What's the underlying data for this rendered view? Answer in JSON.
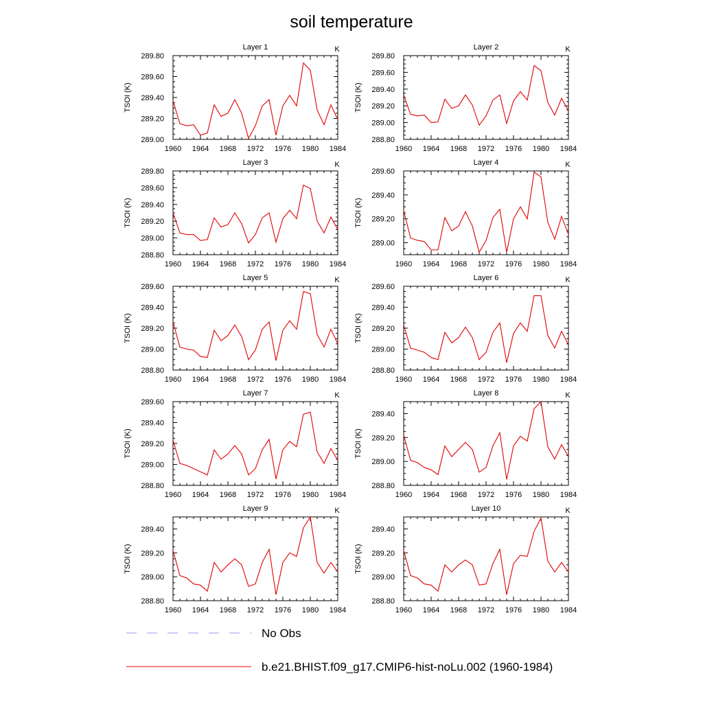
{
  "title": "soil temperature",
  "legend": {
    "position": "bottom",
    "items": [
      {
        "label": "No Obs",
        "color": "#9a9ae8",
        "style": "dashed"
      },
      {
        "label": "b.e21.BHIST.f09_g17.CMIP6-hist-noLu.002 (1960-1984)",
        "color": "#e00000",
        "style": "solid"
      }
    ]
  },
  "chart_data": [
    {
      "type": "line",
      "title": "Layer 1",
      "units": "K",
      "ylabel": "TSOI  (K)",
      "x": [
        1960,
        1961,
        1962,
        1963,
        1964,
        1965,
        1966,
        1967,
        1968,
        1969,
        1970,
        1971,
        1972,
        1973,
        1974,
        1975,
        1976,
        1977,
        1978,
        1979,
        1980,
        1981,
        1982,
        1983,
        1984
      ],
      "xlim": [
        1960,
        1984
      ],
      "xticks": [
        "1960",
        "1964",
        "1968",
        "1972",
        "1976",
        "1980",
        "1984"
      ],
      "ylim": [
        289.0,
        289.8
      ],
      "yticks": [
        "289.00",
        "289.20",
        "289.40",
        "289.60",
        "289.80"
      ],
      "series": [
        {
          "name": "b.e21.BHIST.f09_g17.CMIP6-hist-noLu.002 (1960-1984)",
          "color": "#e00000",
          "values": [
            289.37,
            289.15,
            289.13,
            289.14,
            289.04,
            289.06,
            289.33,
            289.22,
            289.25,
            289.38,
            289.25,
            289.01,
            289.13,
            289.32,
            289.38,
            289.04,
            289.32,
            289.42,
            289.32,
            289.73,
            289.66,
            289.28,
            289.14,
            289.33,
            289.19
          ]
        }
      ]
    },
    {
      "type": "line",
      "title": "Layer 2",
      "units": "K",
      "ylabel": "TSOI  (K)",
      "x": [
        1960,
        1961,
        1962,
        1963,
        1964,
        1965,
        1966,
        1967,
        1968,
        1969,
        1970,
        1971,
        1972,
        1973,
        1974,
        1975,
        1976,
        1977,
        1978,
        1979,
        1980,
        1981,
        1982,
        1983,
        1984
      ],
      "xlim": [
        1960,
        1984
      ],
      "xticks": [
        "1960",
        "1964",
        "1968",
        "1972",
        "1976",
        "1980",
        "1984"
      ],
      "ylim": [
        288.8,
        289.8
      ],
      "yticks": [
        "288.80",
        "289.00",
        "289.20",
        "289.40",
        "289.60",
        "289.80"
      ],
      "series": [
        {
          "name": "b.e21.BHIST.f09_g17.CMIP6-hist-noLu.002 (1960-1984)",
          "color": "#e00000",
          "values": [
            289.33,
            289.1,
            289.08,
            289.09,
            289.0,
            289.01,
            289.28,
            289.17,
            289.2,
            289.33,
            289.21,
            288.97,
            289.08,
            289.27,
            289.33,
            288.99,
            289.26,
            289.37,
            289.27,
            289.68,
            289.62,
            289.24,
            289.09,
            289.29,
            289.14
          ]
        }
      ]
    },
    {
      "type": "line",
      "title": "Layer 3",
      "units": "K",
      "ylabel": "TSOI  (K)",
      "x": [
        1960,
        1961,
        1962,
        1963,
        1964,
        1965,
        1966,
        1967,
        1968,
        1969,
        1970,
        1971,
        1972,
        1973,
        1974,
        1975,
        1976,
        1977,
        1978,
        1979,
        1980,
        1981,
        1982,
        1983,
        1984
      ],
      "xlim": [
        1960,
        1984
      ],
      "xticks": [
        "1960",
        "1964",
        "1968",
        "1972",
        "1976",
        "1980",
        "1984"
      ],
      "ylim": [
        288.8,
        289.8
      ],
      "yticks": [
        "288.80",
        "289.00",
        "289.20",
        "289.40",
        "289.60",
        "289.80"
      ],
      "series": [
        {
          "name": "b.e21.BHIST.f09_g17.CMIP6-hist-noLu.002 (1960-1984)",
          "color": "#e00000",
          "values": [
            289.3,
            289.06,
            289.04,
            289.04,
            288.97,
            288.98,
            289.24,
            289.13,
            289.16,
            289.3,
            289.17,
            288.94,
            289.04,
            289.24,
            289.3,
            288.95,
            289.23,
            289.33,
            289.23,
            289.63,
            289.59,
            289.2,
            289.06,
            289.25,
            289.1
          ]
        }
      ]
    },
    {
      "type": "line",
      "title": "Layer 4",
      "units": "K",
      "ylabel": "TSOI  (K)",
      "x": [
        1960,
        1961,
        1962,
        1963,
        1964,
        1965,
        1966,
        1967,
        1968,
        1969,
        1970,
        1971,
        1972,
        1973,
        1974,
        1975,
        1976,
        1977,
        1978,
        1979,
        1980,
        1981,
        1982,
        1983,
        1984
      ],
      "xlim": [
        1960,
        1984
      ],
      "xticks": [
        "1960",
        "1964",
        "1968",
        "1972",
        "1976",
        "1980",
        "1984"
      ],
      "ylim": [
        288.9,
        289.6
      ],
      "yticks": [
        "289.00",
        "289.20",
        "289.40",
        "289.60"
      ],
      "series": [
        {
          "name": "b.e21.BHIST.f09_g17.CMIP6-hist-noLu.002 (1960-1984)",
          "color": "#e00000",
          "values": [
            289.27,
            289.04,
            289.02,
            289.01,
            288.94,
            288.94,
            289.21,
            289.1,
            289.14,
            289.26,
            289.14,
            288.92,
            289.02,
            289.21,
            289.28,
            288.92,
            289.2,
            289.3,
            289.2,
            289.59,
            289.55,
            289.17,
            289.03,
            289.22,
            289.07
          ]
        }
      ]
    },
    {
      "type": "line",
      "title": "Layer 5",
      "units": "K",
      "ylabel": "TSOI  (K)",
      "x": [
        1960,
        1961,
        1962,
        1963,
        1964,
        1965,
        1966,
        1967,
        1968,
        1969,
        1970,
        1971,
        1972,
        1973,
        1974,
        1975,
        1976,
        1977,
        1978,
        1979,
        1980,
        1981,
        1982,
        1983,
        1984
      ],
      "xlim": [
        1960,
        1984
      ],
      "xticks": [
        "1960",
        "1964",
        "1968",
        "1972",
        "1976",
        "1980",
        "1984"
      ],
      "ylim": [
        288.8,
        289.6
      ],
      "yticks": [
        "288.80",
        "289.00",
        "289.20",
        "289.40",
        "289.60"
      ],
      "series": [
        {
          "name": "b.e21.BHIST.f09_g17.CMIP6-hist-noLu.002 (1960-1984)",
          "color": "#e00000",
          "values": [
            289.26,
            289.02,
            289.0,
            288.99,
            288.93,
            288.92,
            289.18,
            289.08,
            289.13,
            289.23,
            289.12,
            288.9,
            288.99,
            289.19,
            289.26,
            288.89,
            289.18,
            289.27,
            289.19,
            289.55,
            289.53,
            289.14,
            289.02,
            289.19,
            289.05
          ]
        }
      ]
    },
    {
      "type": "line",
      "title": "Layer 6",
      "units": "K",
      "ylabel": "TSOI  (K)",
      "x": [
        1960,
        1961,
        1962,
        1963,
        1964,
        1965,
        1966,
        1967,
        1968,
        1969,
        1970,
        1971,
        1972,
        1973,
        1974,
        1975,
        1976,
        1977,
        1978,
        1979,
        1980,
        1981,
        1982,
        1983,
        1984
      ],
      "xlim": [
        1960,
        1984
      ],
      "xticks": [
        "1960",
        "1964",
        "1968",
        "1972",
        "1976",
        "1980",
        "1984"
      ],
      "ylim": [
        288.8,
        289.6
      ],
      "yticks": [
        "288.80",
        "289.00",
        "289.20",
        "289.40",
        "289.60"
      ],
      "series": [
        {
          "name": "b.e21.BHIST.f09_g17.CMIP6-hist-noLu.002 (1960-1984)",
          "color": "#e00000",
          "values": [
            289.23,
            289.01,
            288.99,
            288.97,
            288.92,
            288.9,
            289.16,
            289.06,
            289.11,
            289.21,
            289.11,
            288.9,
            288.97,
            289.16,
            289.25,
            288.87,
            289.15,
            289.25,
            289.17,
            289.51,
            289.51,
            289.13,
            289.01,
            289.17,
            289.04
          ]
        }
      ]
    },
    {
      "type": "line",
      "title": "Layer 7",
      "units": "K",
      "ylabel": "TSOI  (K)",
      "x": [
        1960,
        1961,
        1962,
        1963,
        1964,
        1965,
        1966,
        1967,
        1968,
        1969,
        1970,
        1971,
        1972,
        1973,
        1974,
        1975,
        1976,
        1977,
        1978,
        1979,
        1980,
        1981,
        1982,
        1983,
        1984
      ],
      "xlim": [
        1960,
        1984
      ],
      "xticks": [
        "1960",
        "1964",
        "1968",
        "1972",
        "1976",
        "1980",
        "1984"
      ],
      "ylim": [
        288.8,
        289.6
      ],
      "yticks": [
        "288.80",
        "289.00",
        "289.20",
        "289.40",
        "289.60"
      ],
      "series": [
        {
          "name": "b.e21.BHIST.f09_g17.CMIP6-hist-noLu.002 (1960-1984)",
          "color": "#e00000",
          "values": [
            289.23,
            289.01,
            288.99,
            288.96,
            288.93,
            288.9,
            289.14,
            289.05,
            289.1,
            289.18,
            289.1,
            288.9,
            288.96,
            289.14,
            289.24,
            288.86,
            289.14,
            289.22,
            289.17,
            289.48,
            289.5,
            289.12,
            289.01,
            289.15,
            289.04
          ]
        }
      ]
    },
    {
      "type": "line",
      "title": "Layer 8",
      "units": "K",
      "ylabel": "TSOI  (K)",
      "x": [
        1960,
        1961,
        1962,
        1963,
        1964,
        1965,
        1966,
        1967,
        1968,
        1969,
        1970,
        1971,
        1972,
        1973,
        1974,
        1975,
        1976,
        1977,
        1978,
        1979,
        1980,
        1981,
        1982,
        1983,
        1984
      ],
      "xlim": [
        1960,
        1984
      ],
      "xticks": [
        "1960",
        "1964",
        "1968",
        "1972",
        "1976",
        "1980",
        "1984"
      ],
      "ylim": [
        288.8,
        289.5
      ],
      "yticks": [
        "288.80",
        "289.00",
        "289.20",
        "289.40"
      ],
      "series": [
        {
          "name": "b.e21.BHIST.f09_g17.CMIP6-hist-noLu.002 (1960-1984)",
          "color": "#e00000",
          "values": [
            289.22,
            289.01,
            288.99,
            288.95,
            288.93,
            288.89,
            289.13,
            289.04,
            289.1,
            289.16,
            289.1,
            288.91,
            288.95,
            289.13,
            289.24,
            288.85,
            289.13,
            289.21,
            289.17,
            289.44,
            289.5,
            289.12,
            289.02,
            289.14,
            289.04
          ]
        }
      ]
    },
    {
      "type": "line",
      "title": "Layer 9",
      "units": "K",
      "ylabel": "TSOI  (K)",
      "x": [
        1960,
        1961,
        1962,
        1963,
        1964,
        1965,
        1966,
        1967,
        1968,
        1969,
        1970,
        1971,
        1972,
        1973,
        1974,
        1975,
        1976,
        1977,
        1978,
        1979,
        1980,
        1981,
        1982,
        1983,
        1984
      ],
      "xlim": [
        1960,
        1984
      ],
      "xticks": [
        "1960",
        "1964",
        "1968",
        "1972",
        "1976",
        "1980",
        "1984"
      ],
      "ylim": [
        288.8,
        289.5
      ],
      "yticks": [
        "288.80",
        "289.00",
        "289.20",
        "289.40"
      ],
      "series": [
        {
          "name": "b.e21.BHIST.f09_g17.CMIP6-hist-noLu.002 (1960-1984)",
          "color": "#e00000",
          "values": [
            289.22,
            289.01,
            288.99,
            288.94,
            288.93,
            288.88,
            289.12,
            289.04,
            289.1,
            289.15,
            289.1,
            288.92,
            288.94,
            289.12,
            289.23,
            288.85,
            289.12,
            289.2,
            289.17,
            289.41,
            289.5,
            289.12,
            289.03,
            289.12,
            289.04
          ]
        }
      ]
    },
    {
      "type": "line",
      "title": "Layer 10",
      "units": "K",
      "ylabel": "TSOI  (K)",
      "x": [
        1960,
        1961,
        1962,
        1963,
        1964,
        1965,
        1966,
        1967,
        1968,
        1969,
        1970,
        1971,
        1972,
        1973,
        1974,
        1975,
        1976,
        1977,
        1978,
        1979,
        1980,
        1981,
        1982,
        1983,
        1984
      ],
      "xlim": [
        1960,
        1984
      ],
      "xticks": [
        "1960",
        "1964",
        "1968",
        "1972",
        "1976",
        "1980",
        "1984"
      ],
      "ylim": [
        288.8,
        289.5
      ],
      "yticks": [
        "288.80",
        "289.00",
        "289.20",
        "289.40"
      ],
      "series": [
        {
          "name": "b.e21.BHIST.f09_g17.CMIP6-hist-noLu.002 (1960-1984)",
          "color": "#e00000",
          "values": [
            289.22,
            289.01,
            288.99,
            288.94,
            288.93,
            288.88,
            289.1,
            289.04,
            289.1,
            289.14,
            289.1,
            288.93,
            288.94,
            289.11,
            289.23,
            288.85,
            289.11,
            289.18,
            289.17,
            289.38,
            289.49,
            289.13,
            289.04,
            289.12,
            289.04
          ]
        }
      ]
    }
  ]
}
